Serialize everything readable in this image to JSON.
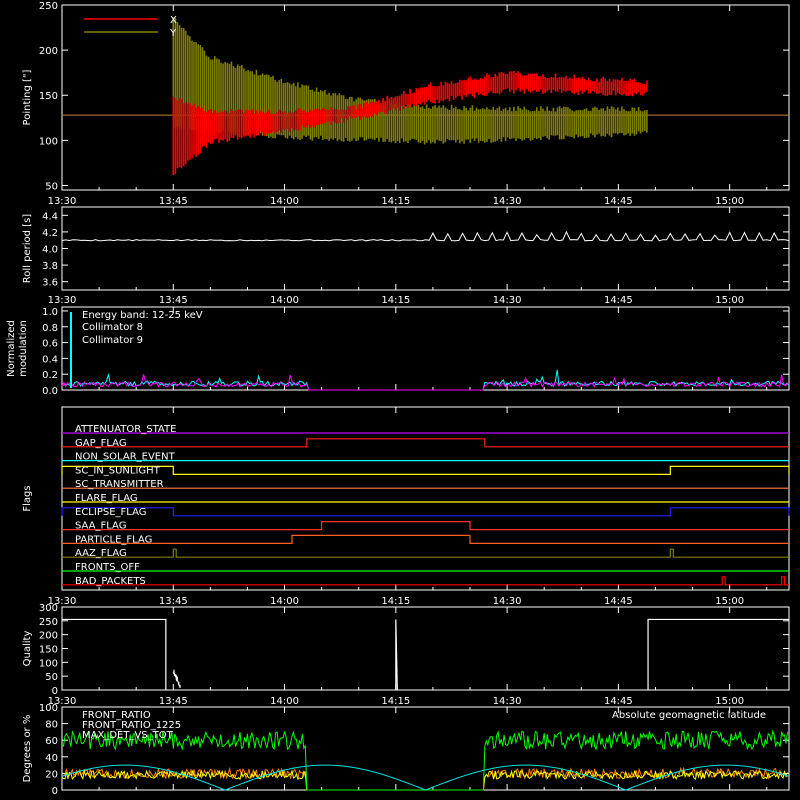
{
  "chart_data": [
    {
      "type": "line",
      "ylabel": "Pointing [\"]",
      "ylim": [
        45,
        250
      ],
      "yticks": [
        50,
        100,
        150,
        200,
        250
      ],
      "xlim": [
        "13:30",
        "15:08"
      ],
      "xticks": [
        "13:30",
        "13:45",
        "14:00",
        "14:15",
        "14:30",
        "14:45",
        "15:00"
      ],
      "series": [
        {
          "name": "X",
          "color": "#ff0000",
          "time": [
            "13:45",
            "13:50",
            "14:00",
            "14:10",
            "14:20",
            "14:30",
            "14:40",
            "14:49"
          ],
          "upper": [
            150,
            135,
            135,
            140,
            165,
            178,
            172,
            168
          ],
          "lower": [
            60,
            95,
            108,
            122,
            140,
            152,
            150,
            148
          ]
        },
        {
          "name": "Y",
          "color": "#808000",
          "time": [
            "13:45",
            "13:50",
            "14:00",
            "14:10",
            "14:20",
            "14:30",
            "14:40",
            "14:49"
          ],
          "upper": [
            238,
            195,
            168,
            148,
            140,
            138,
            138,
            138
          ],
          "lower": [
            112,
            108,
            100,
            98,
            95,
            98,
            102,
            105
          ]
        }
      ],
      "reference_line": {
        "value": 128,
        "color": "#c08040"
      }
    },
    {
      "type": "line",
      "ylabel": "Roll period [s]",
      "ylim": [
        3.5,
        4.5
      ],
      "yticks": [
        "3.6",
        "3.8",
        "4.0",
        "4.2",
        "4.4"
      ],
      "xlim": [
        "13:30",
        "15:08"
      ],
      "xticks": [
        "13:30",
        "13:45",
        "14:00",
        "14:15",
        "14:30",
        "14:45",
        "15:00"
      ],
      "series": [
        {
          "name": "",
          "color": "#ffffff",
          "baseline": 4.1,
          "spike_value": 4.2,
          "spikes_from": "14:20",
          "spikes_to": "15:06"
        }
      ]
    },
    {
      "type": "line",
      "ylabel": "Normalized modulation",
      "ylim": [
        0,
        1.05
      ],
      "yticks": [
        "0.0",
        "0.2",
        "0.4",
        "0.6",
        "0.8",
        "1.0"
      ],
      "xlim": [
        "13:30",
        "15:08"
      ],
      "xticks": [
        "13:30",
        "13:45",
        "14:00",
        "14:15",
        "14:30",
        "14:45",
        "15:00"
      ],
      "annotation": "Energy band: 12-25 keV",
      "series": [
        {
          "name": "Collimator 8",
          "color": "#00ffff",
          "level": 0.08
        },
        {
          "name": "Collimator 9",
          "color": "#ff00ff",
          "level": 0.07
        }
      ],
      "gap": [
        "14:03",
        "14:27"
      ]
    },
    {
      "type": "line",
      "ylabel": "Flags",
      "xlim": [
        "13:30",
        "15:08"
      ],
      "xticks": [
        "13:30",
        "13:45",
        "14:00",
        "14:15",
        "14:30",
        "14:45",
        "15:00"
      ],
      "series": [
        {
          "name": "ATTENUATOR_STATE",
          "color": "#c000ff",
          "segments": []
        },
        {
          "name": "GAP_FLAG",
          "color": "#ff2020",
          "segments": [
            [
              "14:03",
              "14:27"
            ]
          ]
        },
        {
          "name": "NON_SOLAR_EVENT",
          "color": "#00ffff",
          "segments": []
        },
        {
          "name": "SC_IN_SUNLIGHT",
          "color": "#ffff00",
          "segments": [
            [
              "13:30",
              "13:45"
            ],
            [
              "14:52",
              "15:08"
            ]
          ]
        },
        {
          "name": "SC_TRANSMITTER",
          "color": "#ff8040",
          "segments": []
        },
        {
          "name": "FLARE_FLAG",
          "color": "#ffff00",
          "segments": []
        },
        {
          "name": "ECLIPSE_FLAG",
          "color": "#2020ff",
          "segments": [
            [
              "13:30",
              "13:45"
            ],
            [
              "14:52",
              "15:08"
            ]
          ]
        },
        {
          "name": "SAA_FLAG",
          "color": "#ff3030",
          "segments": [
            [
              "14:05",
              "14:25"
            ]
          ]
        },
        {
          "name": "PARTICLE_FLAG",
          "color": "#ff6020",
          "segments": [
            [
              "14:01",
              "14:25"
            ]
          ]
        },
        {
          "name": "AAZ_FLAG",
          "color": "#808000",
          "segments": [
            [
              "13:45",
              "13:45"
            ],
            [
              "14:52",
              "14:52"
            ]
          ]
        },
        {
          "name": "FRONTS_OFF",
          "color": "#00ff00",
          "segments": []
        },
        {
          "name": "BAD_PACKETS",
          "color": "#ff0000",
          "segments": [
            [
              "14:59",
              "14:59"
            ],
            [
              "15:07",
              "15:07"
            ]
          ]
        }
      ]
    },
    {
      "type": "line",
      "ylabel": "Quality",
      "ylim": [
        0,
        300
      ],
      "yticks": [
        0,
        50,
        100,
        150,
        200,
        250,
        300
      ],
      "xlim": [
        "13:30",
        "15:08"
      ],
      "xticks": [
        "13:30",
        "13:45",
        "14:00",
        "14:15",
        "14:30",
        "14:45",
        "15:00"
      ],
      "series": [
        {
          "name": "",
          "color": "#ffffff",
          "time": [
            "13:30",
            "13:44",
            "13:45",
            "14:15",
            "14:16",
            "14:49",
            "15:08"
          ],
          "values": [
            255,
            255,
            0,
            255,
            0,
            255,
            255
          ]
        }
      ]
    },
    {
      "type": "line",
      "ylabel": "Degrees or %",
      "ylim": [
        0,
        100
      ],
      "yticks": [
        0,
        20,
        40,
        60,
        80,
        100
      ],
      "xlim": [
        "13:30",
        "15:08"
      ],
      "xticks": [
        "13:30",
        "13:45",
        "14:00",
        "14:15",
        "14:30",
        "14:45",
        "15:00"
      ],
      "annotation": "Absolute geomagnetic latitude",
      "annotation_color": "#00e0e0",
      "series": [
        {
          "name": "FRONT_RATIO",
          "color": "#ffff00",
          "level": 18
        },
        {
          "name": "FRONT_RATIO_1225",
          "color": "#00ff00",
          "level": 60
        },
        {
          "name": "MAX_DET_VS_TOT",
          "color": "#ff8000",
          "level": 20
        },
        {
          "name": "",
          "color": "#00e0e0",
          "period_min": 27,
          "amplitude": 30
        }
      ],
      "gap": [
        "14:03",
        "14:27"
      ]
    }
  ]
}
